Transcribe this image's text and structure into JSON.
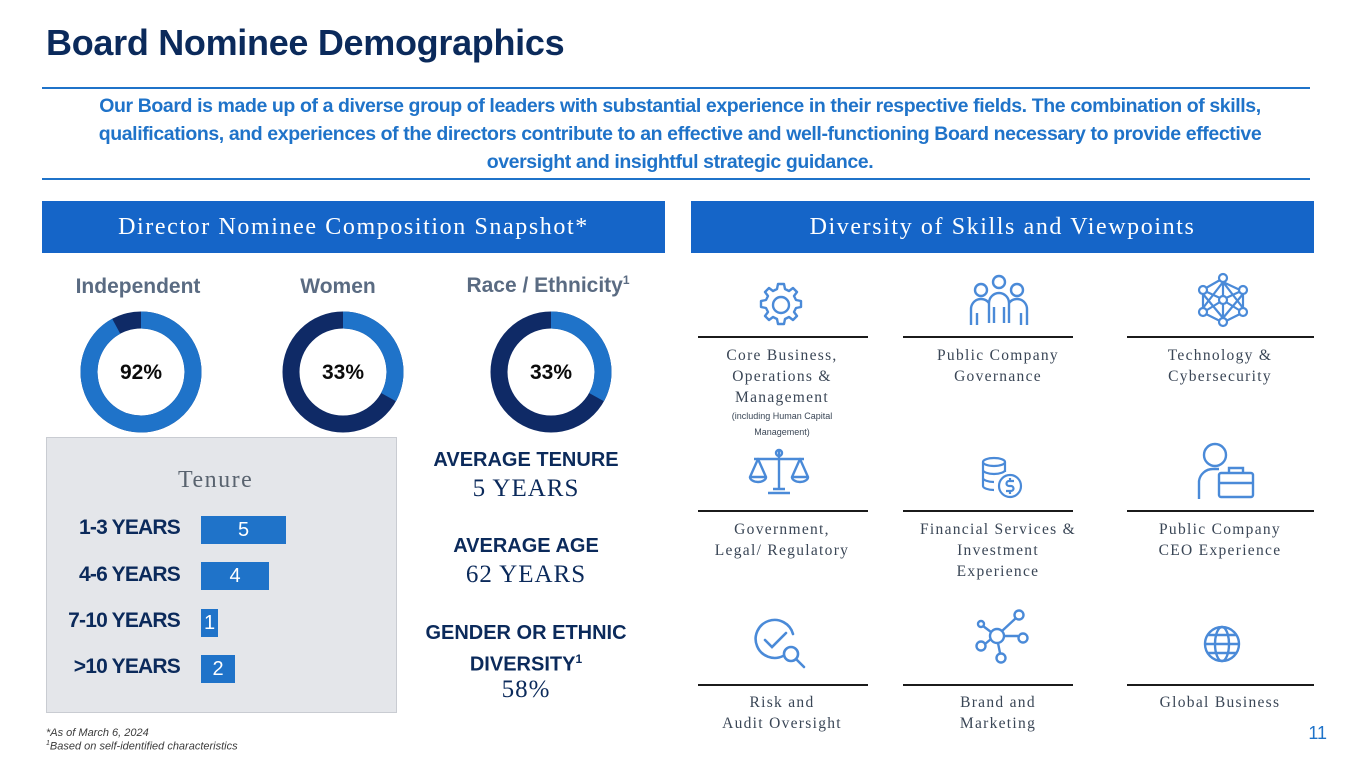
{
  "header": {
    "title": "Board Nominee Demographics",
    "intro": "Our Board is made up of a diverse group of leaders with substantial experience in their respective fields.  The combination of skills, qualifications, and experiences of the directors contribute to an effective and well-functioning Board necessary to provide effective oversight and insightful strategic guidance."
  },
  "colors": {
    "primary": "#1f73c9",
    "dark_navy": "#0f2a66",
    "banner": "#1565c8",
    "title": "#0b2a5b"
  },
  "snapshot": {
    "banner": "Director Nominee Composition Snapshot*",
    "donuts": [
      {
        "label": "Independent",
        "value_text": "92%",
        "fraction": 0.92,
        "sup": ""
      },
      {
        "label": "Women",
        "value_text": "33%",
        "fraction": 0.33,
        "sup": ""
      },
      {
        "label": "Race / Ethnicity",
        "value_text": "33%",
        "fraction": 0.33,
        "sup": "1"
      }
    ]
  },
  "tenure": {
    "title": "Tenure",
    "rows": [
      {
        "label": "1-3 YEARS",
        "value": 5
      },
      {
        "label": "4-6 YEARS",
        "value": 4
      },
      {
        "label": "7-10 YEARS",
        "value": 1
      },
      {
        "label": ">10 YEARS",
        "value": 2
      }
    ]
  },
  "stats": {
    "avg_tenure_label": "AVERAGE TENURE",
    "avg_tenure_value": "5 YEARS",
    "avg_age_label": "AVERAGE AGE",
    "avg_age_value": "62 YEARS",
    "diversity_label": "GENDER OR ETHNIC DIVERSITY",
    "diversity_sup": "1",
    "diversity_value": "58%"
  },
  "skills": {
    "banner": "Diversity of Skills and Viewpoints",
    "items": [
      {
        "icon": "gear-icon",
        "line1": "Core Business,",
        "line2": "Operations &",
        "line3": "Management",
        "note": "(including Human Capital Management)"
      },
      {
        "icon": "people-group-icon",
        "line1": "Public Company",
        "line2": "Governance",
        "line3": ""
      },
      {
        "icon": "network-icon",
        "line1": "Technology &",
        "line2": "Cybersecurity",
        "line3": ""
      },
      {
        "icon": "scales-icon",
        "line1": "Government,",
        "line2": "Legal/ Regulatory",
        "line3": ""
      },
      {
        "icon": "coins-dollar-icon",
        "line1": "Financial Services &",
        "line2": "Investment",
        "line3": "Experience"
      },
      {
        "icon": "ceo-briefcase-icon",
        "line1": "Public Company",
        "line2": "CEO Experience",
        "line3": ""
      },
      {
        "icon": "audit-magnifier-icon",
        "line1": "Risk and",
        "line2": "Audit Oversight",
        "line3": ""
      },
      {
        "icon": "molecule-icon",
        "line1": "Brand and",
        "line2": "Marketing",
        "line3": ""
      },
      {
        "icon": "globe-icon",
        "line1": "Global Business",
        "line2": "",
        "line3": ""
      }
    ]
  },
  "footnotes": {
    "asof": "*As of March 6, 2024",
    "sup": "1",
    "selfid": "Based on self-identified characteristics"
  },
  "page_number": "11"
}
